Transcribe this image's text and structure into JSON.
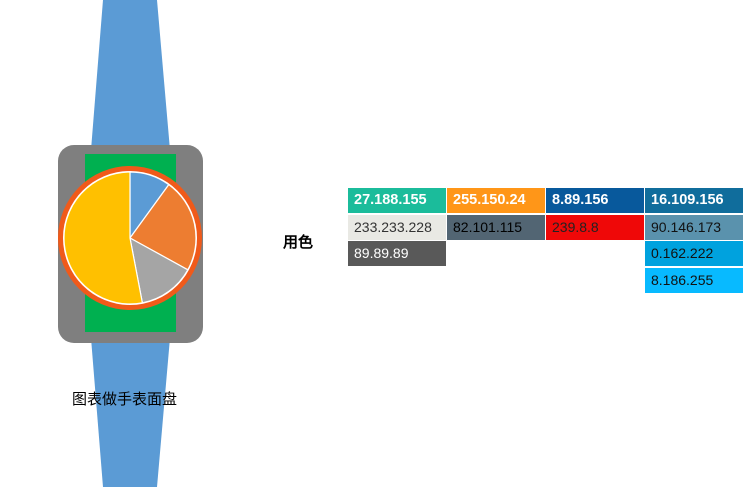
{
  "caption": "图表做手表面盘",
  "palette_label": "用色",
  "pie": {
    "slices": [
      {
        "value": 10,
        "color": "#5b9bd5"
      },
      {
        "value": 23,
        "color": "#ed7d31"
      },
      {
        "value": 14,
        "color": "#a5a5a5"
      },
      {
        "value": 53,
        "color": "#ffc000"
      }
    ]
  },
  "colors": {
    "strap": "#5b9bd5",
    "case": "#7f7f7f",
    "screen": "#00b050",
    "bezel": "#f05a1a"
  },
  "palette": {
    "c1": {
      "text": "27.188.155",
      "bg": "#1bbc9b"
    },
    "c2": {
      "text": "255.150.24",
      "bg": "#ff9618"
    },
    "c3": {
      "text": "8.89.156",
      "bg": "#08599c"
    },
    "c4": {
      "text": "16.109.156",
      "bg": "#106d9c"
    },
    "r2c1": {
      "text": "233.233.228",
      "bg": "#e9e9e4"
    },
    "r2c2": {
      "text": "82.101.115",
      "bg": "#526573"
    },
    "r2c3": {
      "text": "239.8.8",
      "bg": "#ef0808"
    },
    "r2c4": {
      "text": "90.146.173",
      "bg": "#5a92ad"
    },
    "r3c1": {
      "text": "89.89.89",
      "bg": "#595959"
    },
    "r3c4": {
      "text": "0.162.222",
      "bg": "#00a2de"
    },
    "r4c4": {
      "text": "8.186.255",
      "bg": "#08baff"
    }
  }
}
